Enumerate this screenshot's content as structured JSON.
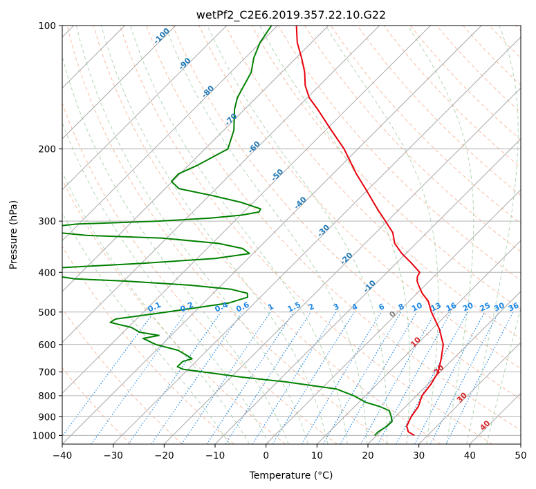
{
  "chart_data": {
    "type": "line",
    "subtype": "skew-T log-P diagram",
    "title": "wetPf2_C2E6.2019.357.22.10.G22",
    "xlabel": "Temperature (°C)",
    "ylabel": "Pressure (hPa)",
    "xlim": [
      -40,
      50
    ],
    "ylim": [
      1050,
      100
    ],
    "y_scale": "log",
    "grid": true,
    "x_ticks": [
      "−40",
      "−30",
      "−20",
      "−10",
      "0",
      "10",
      "20",
      "30",
      "40",
      "50"
    ],
    "y_ticks": [
      "100",
      "200",
      "300",
      "400",
      "500",
      "600",
      "700",
      "800",
      "900",
      "1000"
    ],
    "x_tick_values": [
      -40,
      -30,
      -20,
      -10,
      0,
      10,
      20,
      30,
      40,
      50
    ],
    "y_tick_values": [
      100,
      200,
      300,
      400,
      500,
      600,
      700,
      800,
      900,
      1000
    ],
    "isotherm_labels": [
      "-100",
      "-90",
      "-80",
      "-70",
      "-60",
      "-50",
      "-40",
      "-30",
      "-20",
      "-10",
      "0",
      "10",
      "20",
      "30",
      "40"
    ],
    "isotherm_label_values": [
      -100,
      -90,
      -80,
      -70,
      -60,
      -50,
      -40,
      -30,
      -20,
      -10,
      0,
      10,
      20,
      30,
      40
    ],
    "mixing_ratio_labels": [
      "0.1",
      "0.2",
      "0.4",
      "0.6",
      "1",
      "1.5",
      "2",
      "3",
      "4",
      "6",
      "8",
      "10",
      "13",
      "16",
      "20",
      "25",
      "30",
      "36"
    ],
    "mixing_ratio_values": [
      0.1,
      0.2,
      0.4,
      0.6,
      1,
      1.5,
      2,
      3,
      4,
      6,
      8,
      10,
      13,
      16,
      20,
      25,
      30,
      36
    ],
    "colors": {
      "temperature": "#e8000b",
      "dewpoint": "#008000",
      "isotherm_cold": "#1f77b4",
      "isotherm_warm": "#d62728",
      "mixing_ratio": "#1e88e5",
      "dry_adiabat": "#f4a582",
      "moist_adiabat": "#9ecb9e"
    },
    "series": [
      {
        "role": "temperature",
        "pressure": [
          1000,
          980,
          960,
          950,
          925,
          900,
          850,
          800,
          750,
          700,
          650,
          600,
          550,
          500,
          470,
          450,
          430,
          420,
          410,
          400,
          380,
          360,
          340,
          320,
          300,
          280,
          250,
          230,
          200,
          180,
          160,
          150,
          140,
          130,
          120,
          110,
          100
        ],
        "temperature": [
          27.4,
          25.5,
          24.6,
          24.1,
          23.6,
          23.1,
          22.5,
          21.1,
          20.6,
          19.6,
          17.6,
          15.2,
          11.4,
          6.5,
          3.7,
          1.0,
          -1.3,
          -2.4,
          -3.2,
          -3.6,
          -7.0,
          -10.8,
          -14.2,
          -16.7,
          -20.4,
          -24.4,
          -30.7,
          -35.4,
          -42.7,
          -48.9,
          -55.7,
          -59.6,
          -62.8,
          -65.5,
          -68.9,
          -72.8,
          -76.3
        ]
      },
      {
        "role": "dewpoint",
        "pressure": [
          1000,
          980,
          950,
          925,
          900,
          870,
          850,
          830,
          800,
          770,
          740,
          720,
          700,
          690,
          680,
          660,
          650,
          640,
          620,
          600,
          580,
          570,
          560,
          545,
          530,
          520,
          505,
          490,
          475,
          460,
          450,
          440,
          430,
          420,
          415,
          410,
          400,
          390,
          380,
          370,
          360,
          350,
          340,
          330,
          325,
          320,
          310,
          305,
          300,
          295,
          290,
          285,
          280,
          270,
          260,
          250,
          240,
          230,
          220,
          200,
          180,
          160,
          150,
          130,
          120,
          110,
          100
        ],
        "dewpoint": [
          19.6,
          19.6,
          20.2,
          20.3,
          19.2,
          17.6,
          14.9,
          11.3,
          7.7,
          2.9,
          -8.5,
          -18.3,
          -26.5,
          -30.9,
          -32.6,
          -32.6,
          -31.3,
          -32.7,
          -35.7,
          -41.2,
          -44.9,
          -42.4,
          -46.8,
          -49.4,
          -54.5,
          -54.1,
          -47.6,
          -41.3,
          -35.0,
          -32.5,
          -33.3,
          -37.3,
          -46.2,
          -59.9,
          -70.0,
          -73.3,
          -79.5,
          -75.5,
          -59.5,
          -46.5,
          -40.7,
          -43.0,
          -48.8,
          -60.9,
          -76.3,
          -82.4,
          -85.2,
          -80.4,
          -64.8,
          -55.3,
          -49.7,
          -47.0,
          -47.3,
          -52.4,
          -59.3,
          -67.3,
          -70.2,
          -70.3,
          -68.4,
          -65.5,
          -68.0,
          -72.0,
          -73.7,
          -76.0,
          -78.3,
          -80.1,
          -81.2
        ]
      }
    ]
  }
}
